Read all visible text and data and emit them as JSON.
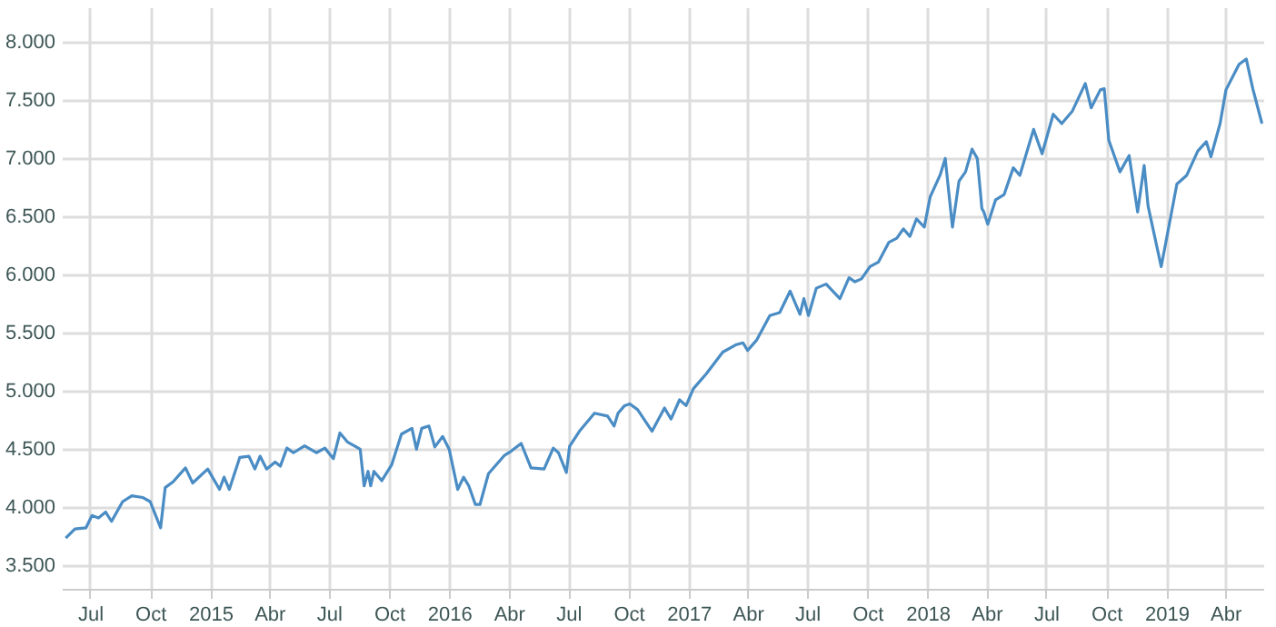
{
  "chart_data": {
    "type": "line",
    "grid": true,
    "marker": "none",
    "line_style": "solid",
    "xlim": [
      "2014-05-19",
      "2019-05-29"
    ],
    "xticks": [
      {
        "value": "2014-07-01",
        "label": "Jul"
      },
      {
        "value": "2014-10-01",
        "label": "Oct"
      },
      {
        "value": "2015-01-01",
        "label": "2015"
      },
      {
        "value": "2015-04-01",
        "label": "Abr"
      },
      {
        "value": "2015-07-01",
        "label": "Jul"
      },
      {
        "value": "2015-10-01",
        "label": "Oct"
      },
      {
        "value": "2016-01-01",
        "label": "2016"
      },
      {
        "value": "2016-04-01",
        "label": "Abr"
      },
      {
        "value": "2016-07-01",
        "label": "Jul"
      },
      {
        "value": "2016-10-01",
        "label": "Oct"
      },
      {
        "value": "2017-01-01",
        "label": "2017"
      },
      {
        "value": "2017-04-01",
        "label": "Abr"
      },
      {
        "value": "2017-07-01",
        "label": "Jul"
      },
      {
        "value": "2017-10-01",
        "label": "Oct"
      },
      {
        "value": "2018-01-01",
        "label": "2018"
      },
      {
        "value": "2018-04-01",
        "label": "Abr"
      },
      {
        "value": "2018-07-01",
        "label": "Jul"
      },
      {
        "value": "2018-10-01",
        "label": "Oct"
      },
      {
        "value": "2019-01-01",
        "label": "2019"
      },
      {
        "value": "2019-04-01",
        "label": "Abr"
      }
    ],
    "ylim": [
      3300,
      8300
    ],
    "yticks": [
      {
        "value": 3500,
        "label": "3.500"
      },
      {
        "value": 4000,
        "label": "4.000"
      },
      {
        "value": 4500,
        "label": "4.500"
      },
      {
        "value": 5000,
        "label": "5.000"
      },
      {
        "value": 5500,
        "label": "5.500"
      },
      {
        "value": 6000,
        "label": "6.000"
      },
      {
        "value": 6500,
        "label": "6.500"
      },
      {
        "value": 7000,
        "label": "7.000"
      },
      {
        "value": 7500,
        "label": "7.500"
      },
      {
        "value": 8000,
        "label": "8.000"
      }
    ],
    "x": [
      "2014-05-25",
      "2014-06-08",
      "2014-06-25",
      "2014-07-04",
      "2014-07-14",
      "2014-07-25",
      "2014-08-03",
      "2014-08-20",
      "2014-09-03",
      "2014-09-20",
      "2014-10-01",
      "2014-10-17",
      "2014-10-24",
      "2014-11-05",
      "2014-11-24",
      "2014-12-05",
      "2014-12-28",
      "2015-01-15",
      "2015-01-22",
      "2015-01-30",
      "2015-02-15",
      "2015-03-01",
      "2015-03-10",
      "2015-03-18",
      "2015-03-28",
      "2015-04-10",
      "2015-04-18",
      "2015-04-28",
      "2015-05-08",
      "2015-05-25",
      "2015-06-12",
      "2015-06-25",
      "2015-07-08",
      "2015-07-18",
      "2015-07-30",
      "2015-08-12",
      "2015-08-18",
      "2015-08-24",
      "2015-08-30",
      "2015-09-03",
      "2015-09-08",
      "2015-09-20",
      "2015-10-05",
      "2015-10-20",
      "2015-11-05",
      "2015-11-12",
      "2015-11-20",
      "2015-12-01",
      "2015-12-10",
      "2015-12-22",
      "2016-01-01",
      "2016-01-14",
      "2016-01-23",
      "2016-01-31",
      "2016-02-10",
      "2016-02-17",
      "2016-03-01",
      "2016-03-25",
      "2016-04-05",
      "2016-04-20",
      "2016-05-05",
      "2016-05-25",
      "2016-06-08",
      "2016-06-16",
      "2016-06-28",
      "2016-07-03",
      "2016-07-18",
      "2016-08-10",
      "2016-08-30",
      "2016-09-09",
      "2016-09-15",
      "2016-09-25",
      "2016-10-03",
      "2016-10-15",
      "2016-11-06",
      "2016-11-25",
      "2016-12-05",
      "2016-12-18",
      "2016-12-28",
      "2017-01-08",
      "2017-01-28",
      "2017-02-22",
      "2017-03-15",
      "2017-03-25",
      "2017-04-01",
      "2017-04-15",
      "2017-05-05",
      "2017-05-20",
      "2017-06-05",
      "2017-06-20",
      "2017-06-26",
      "2017-07-03",
      "2017-07-15",
      "2017-07-30",
      "2017-08-20",
      "2017-09-03",
      "2017-09-12",
      "2017-09-22",
      "2017-10-05",
      "2017-10-18",
      "2017-11-03",
      "2017-11-15",
      "2017-11-25",
      "2017-12-05",
      "2017-12-15",
      "2017-12-27",
      "2018-01-05",
      "2018-01-20",
      "2018-01-28",
      "2018-02-08",
      "2018-02-18",
      "2018-02-28",
      "2018-03-10",
      "2018-03-18",
      "2018-03-25",
      "2018-03-28",
      "2018-04-03",
      "2018-04-15",
      "2018-04-28",
      "2018-05-12",
      "2018-05-22",
      "2018-06-12",
      "2018-06-25",
      "2018-07-12",
      "2018-07-25",
      "2018-08-10",
      "2018-08-30",
      "2018-09-08",
      "2018-09-22",
      "2018-09-28",
      "2018-10-05",
      "2018-10-22",
      "2018-11-05",
      "2018-11-18",
      "2018-11-28",
      "2018-12-04",
      "2018-12-24",
      "2019-01-01",
      "2019-01-17",
      "2019-02-01",
      "2019-02-18",
      "2019-03-03",
      "2019-03-10",
      "2019-03-24",
      "2019-04-02",
      "2019-04-22",
      "2019-05-03",
      "2019-05-13",
      "2019-05-27"
    ],
    "values": [
      3736,
      3815,
      3825,
      3930,
      3910,
      3960,
      3880,
      4050,
      4100,
      4085,
      4050,
      3825,
      4170,
      4220,
      4340,
      4210,
      4330,
      4155,
      4260,
      4155,
      4430,
      4440,
      4330,
      4440,
      4330,
      4390,
      4355,
      4510,
      4470,
      4530,
      4470,
      4510,
      4420,
      4640,
      4560,
      4520,
      4500,
      4185,
      4310,
      4185,
      4310,
      4230,
      4365,
      4630,
      4680,
      4500,
      4680,
      4700,
      4520,
      4610,
      4500,
      4155,
      4260,
      4185,
      4025,
      4025,
      4290,
      4445,
      4485,
      4550,
      4340,
      4330,
      4510,
      4470,
      4300,
      4525,
      4655,
      4810,
      4785,
      4700,
      4810,
      4875,
      4890,
      4840,
      4655,
      4855,
      4760,
      4925,
      4875,
      5020,
      5150,
      5335,
      5400,
      5415,
      5350,
      5440,
      5650,
      5675,
      5860,
      5660,
      5795,
      5650,
      5885,
      5920,
      5795,
      5975,
      5940,
      5965,
      6070,
      6110,
      6280,
      6315,
      6395,
      6330,
      6480,
      6410,
      6670,
      6855,
      7000,
      6410,
      6805,
      6885,
      7080,
      7000,
      6570,
      6540,
      6435,
      6645,
      6690,
      6920,
      6855,
      7250,
      7040,
      7380,
      7300,
      7405,
      7645,
      7435,
      7590,
      7600,
      7155,
      6885,
      7025,
      6540,
      6940,
      6590,
      6070,
      6305,
      6780,
      6855,
      7065,
      7145,
      7015,
      7300,
      7590,
      7810,
      7855,
      7600,
      7300
    ],
    "color": "#4a8cc4"
  }
}
